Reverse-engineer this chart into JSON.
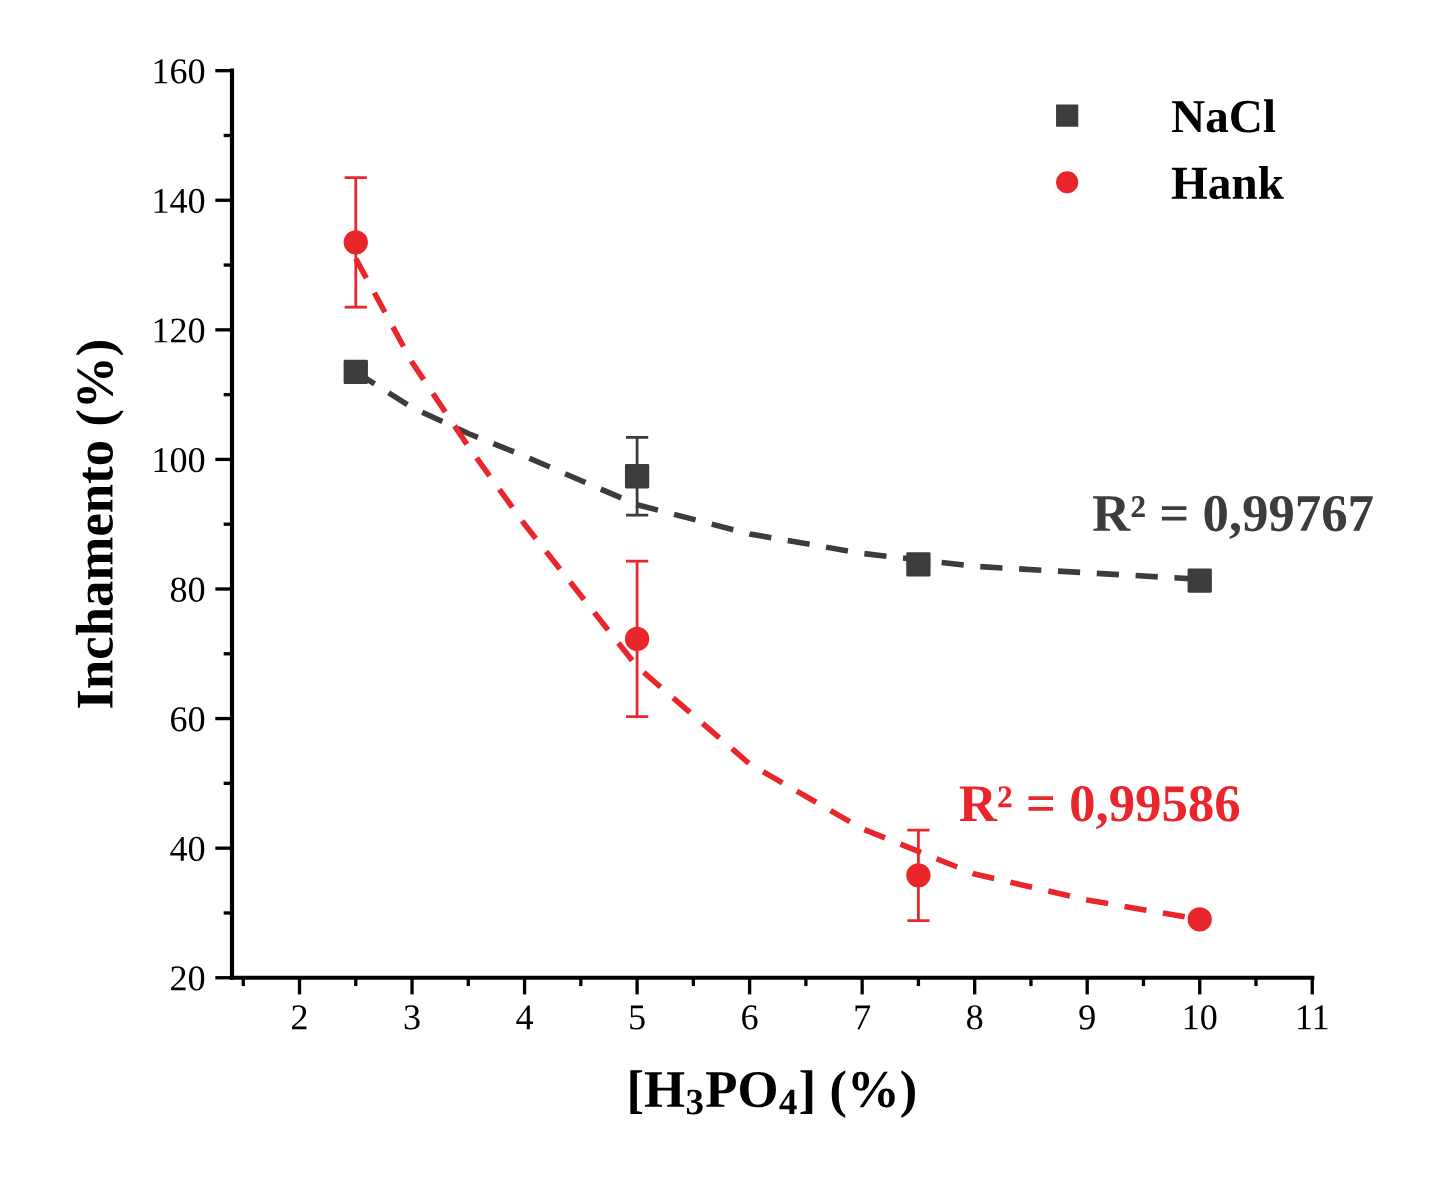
{
  "chart_data": {
    "type": "scatter",
    "xlabel": "[H$_{3}$PO$_{4}$] (%)",
    "ylabel": "Inchamento (%)",
    "xlim": [
      1.4,
      11
    ],
    "xticks": [
      2,
      3,
      4,
      5,
      6,
      7,
      8,
      9,
      10,
      11
    ],
    "ylim": [
      20,
      160
    ],
    "yticks": [
      20,
      40,
      60,
      80,
      100,
      120,
      140,
      160
    ],
    "grid": false,
    "legend": "top right",
    "series": [
      {
        "name": "NaCl",
        "color": "#3c3c3c",
        "marker": "square",
        "x": [
          2.5,
          5,
          7.5,
          10
        ],
        "values": [
          113.5,
          97.4,
          83.8,
          81.3
        ],
        "errors": [
          null,
          6,
          null,
          null
        ]
      },
      {
        "name": "Hank",
        "color": "#e8262b",
        "marker": "circle",
        "x": [
          2.5,
          5,
          7.5,
          10
        ],
        "values": [
          133.5,
          72.3,
          35.8,
          29
        ],
        "errors": [
          10,
          12,
          7,
          null
        ]
      },
      {
        "type": "line",
        "color": "#3c3c3c",
        "line_style": "dashed",
        "marker": "none",
        "x": [
          2.5,
          3,
          3.5,
          4,
          5,
          6,
          7,
          7.5,
          8,
          9,
          10
        ],
        "values": [
          113.5,
          108,
          104,
          100.5,
          93,
          88.5,
          85.5,
          84.5,
          83.5,
          82.5,
          81.5
        ]
      },
      {
        "type": "line",
        "color": "#e8262b",
        "line_style": "dashed",
        "marker": "none",
        "x": [
          2.5,
          3,
          3.5,
          4,
          5,
          6,
          7,
          7.5,
          8,
          9,
          10
        ],
        "values": [
          131,
          115,
          102,
          90,
          68,
          53,
          43,
          39.5,
          36,
          32,
          29
        ]
      }
    ],
    "annotations": [
      "R² = 0,99767",
      "R² = 0,99586"
    ]
  }
}
